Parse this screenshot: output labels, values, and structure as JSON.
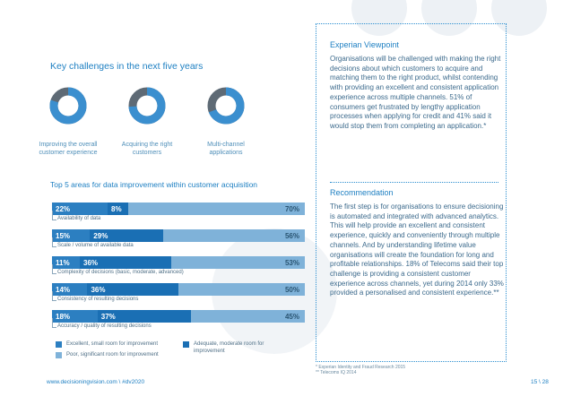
{
  "challenges": {
    "title": "Key challenges in the next five years",
    "items": [
      {
        "percent": "80%",
        "value": 80,
        "caption": "Improving the overall customer experience"
      },
      {
        "percent": "74%",
        "value": 74,
        "caption": "Acquiring the right customers"
      },
      {
        "percent": "69%",
        "value": 69,
        "caption": "Multi-channel applications"
      }
    ]
  },
  "improvement": {
    "title": "Top 5 areas for data improvement within customer acquisition",
    "rows": [
      {
        "a": "22%",
        "b": "8%",
        "c": "70%",
        "va": 22,
        "vb": 8,
        "vc": 70,
        "label": "Availability of data"
      },
      {
        "a": "15%",
        "b": "29%",
        "c": "56%",
        "va": 15,
        "vb": 29,
        "vc": 56,
        "label": "Scale / volume of available data"
      },
      {
        "a": "11%",
        "b": "36%",
        "c": "53%",
        "va": 11,
        "vb": 36,
        "vc": 53,
        "label": "Complexity of decisions (basic, moderate, advanced)"
      },
      {
        "a": "14%",
        "b": "36%",
        "c": "50%",
        "va": 14,
        "vb": 36,
        "vc": 50,
        "label": "Consistency of resulting decisions"
      },
      {
        "a": "18%",
        "b": "37%",
        "c": "45%",
        "va": 18,
        "vb": 37,
        "vc": 45,
        "label": "Accuracy / quality of resulting decisions"
      }
    ],
    "legend": {
      "excellent": "Excellent, small room for improvement",
      "poor": "Poor, significant room for improvement",
      "adequate": "Adequate, moderate room for improvement"
    }
  },
  "panel": {
    "viewpoint_title": "Experian Viewpoint",
    "viewpoint_text": "Organisations will be challenged with making the right decisions about which customers to acquire and matching them to the right product, whilst contending with providing an excellent and consistent application experience across multiple channels. 51% of consumers get frustrated by lengthy application processes when applying for credit and 41% said it would stop them from completing an application.*",
    "recommendation_title": "Recommendation",
    "recommendation_text": "The first step is for organisations to ensure decisioning is automated and integrated with advanced analytics. This will help provide an excellent and consistent experience, quickly and conveniently through multiple channels. And by understanding lifetime value organisations will create the foundation for long and profitable relationships. 18% of Telecoms said their top challenge is providing a consistent customer experience across channels, yet during 2014 only 33% provided a personalised and consistent experience.**",
    "footnote1": "* Experian Identity and Fraud Research 2015",
    "footnote2": "** Telecoms IQ 2014"
  },
  "footer": {
    "left": "www.decisioningvision.com  \\  #dv2020",
    "right": "15 \\ 28"
  },
  "colors": {
    "excellent": "#2c7fc1",
    "adequate": "#1a6fb4",
    "poor": "#7fb2d9",
    "donut_track": "#5e6a75",
    "donut_fill": "#3b8fcf"
  }
}
